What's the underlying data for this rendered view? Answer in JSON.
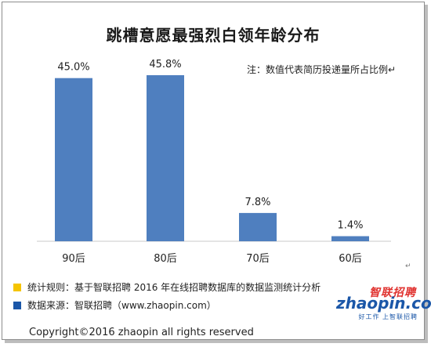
{
  "chart_data": {
    "type": "bar",
    "title": "跳槽意愿最强烈白领年龄分布",
    "categories": [
      "90后",
      "80后",
      "70后",
      "60后"
    ],
    "values": [
      45.0,
      45.8,
      7.8,
      1.4
    ],
    "value_labels": [
      "45.0%",
      "45.8%",
      "7.8%",
      "1.4%"
    ],
    "ylim": [
      0,
      50
    ],
    "grid": false,
    "bar_color": "#4f7fbf",
    "note": "注：数值代表简历投递量所占比例↵"
  },
  "legend": [
    {
      "color": "#f5c400",
      "text": "统计规则：基于智联招聘 2016 年在线招聘数据库的数据监测统计分析"
    },
    {
      "color": "#1b57a8",
      "text": "数据来源：智联招聘（www.zhaopin.com）"
    }
  ],
  "footer": {
    "copyright": "Copyright©2016 zhaopin all rights reserved"
  },
  "logo": {
    "brand": "智联招聘",
    "word": "zhaopin.com",
    "slogan": "好工作 上智联招聘"
  },
  "marks": {
    "pilcrow": "↵"
  }
}
